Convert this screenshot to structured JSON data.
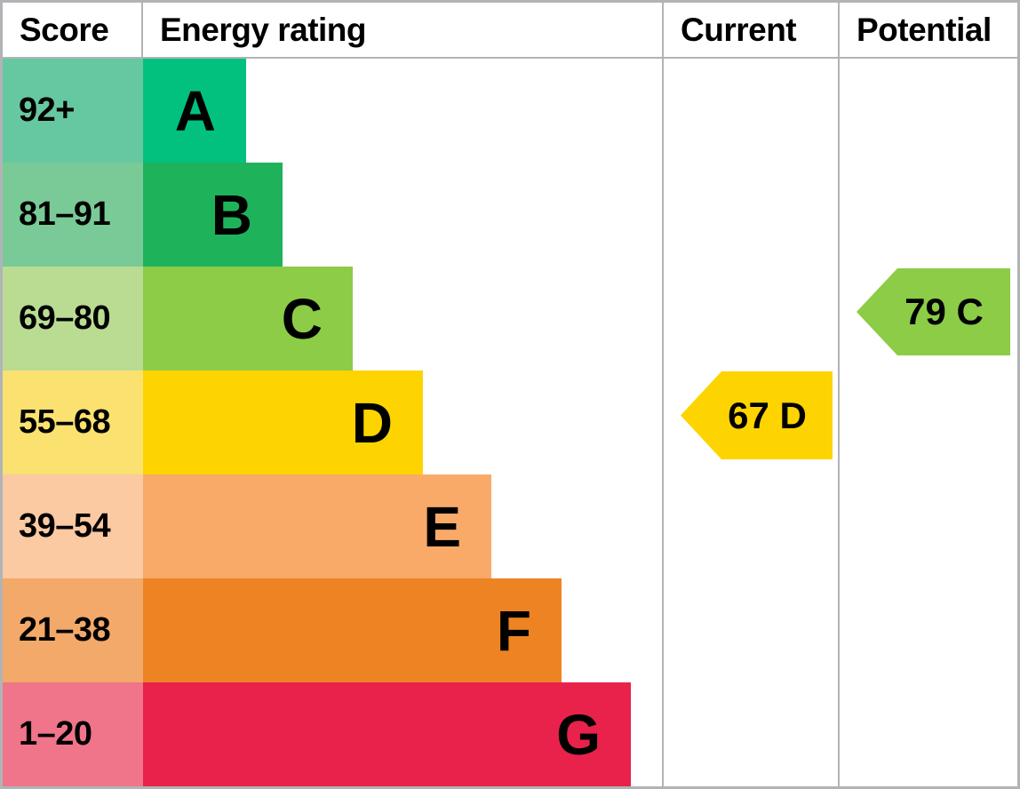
{
  "header": {
    "score": "Score",
    "energy_rating": "Energy rating",
    "current": "Current",
    "potential": "Potential"
  },
  "bands": [
    {
      "letter": "A",
      "score_range": "92+",
      "bar_color": "#02c17e",
      "score_bg": "#66c8a0"
    },
    {
      "letter": "B",
      "score_range": "81–91",
      "bar_color": "#1eb35b",
      "score_bg": "#79ca96"
    },
    {
      "letter": "C",
      "score_range": "69–80",
      "bar_color": "#8ccc47",
      "score_bg": "#b9dc92"
    },
    {
      "letter": "D",
      "score_range": "55–68",
      "bar_color": "#fdd400",
      "score_bg": "#fae170"
    },
    {
      "letter": "E",
      "score_range": "39–54",
      "bar_color": "#f9a968",
      "score_bg": "#fbc9a2"
    },
    {
      "letter": "F",
      "score_range": "21–38",
      "bar_color": "#ee8324",
      "score_bg": "#f3a969"
    },
    {
      "letter": "G",
      "score_range": "1–20",
      "bar_color": "#e8224a",
      "score_bg": "#f0758a"
    }
  ],
  "current": {
    "label": "67 D",
    "score": 67,
    "band": "D",
    "arrow_color": "#fdd400"
  },
  "potential": {
    "label": "79 C",
    "score": 79,
    "band": "C",
    "arrow_color": "#8ccc47"
  },
  "chart_data": {
    "type": "bar",
    "orientation": "horizontal",
    "title": "",
    "columns": [
      "Score",
      "Energy rating",
      "Current",
      "Potential"
    ],
    "categories": [
      "A",
      "B",
      "C",
      "D",
      "E",
      "F",
      "G"
    ],
    "score_ranges": [
      "92+",
      "81–91",
      "69–80",
      "55–68",
      "39–54",
      "21–38",
      "1–20"
    ],
    "band_colors": [
      "#02c17e",
      "#1eb35b",
      "#8ccc47",
      "#fdd400",
      "#f9a968",
      "#ee8324",
      "#e8224a"
    ],
    "score_cell_colors": [
      "#66c8a0",
      "#79ca96",
      "#b9dc92",
      "#fae170",
      "#fbc9a2",
      "#f3a969",
      "#f0758a"
    ],
    "bar_lengths_relative": [
      1,
      1.35,
      2.03,
      2.72,
      3.38,
      4.06,
      4.73
    ],
    "markers": [
      {
        "name": "Current",
        "value": 67,
        "band": "D",
        "color": "#fdd400",
        "shape": "left-pointing-arrow"
      },
      {
        "name": "Potential",
        "value": 79,
        "band": "C",
        "color": "#8ccc47",
        "shape": "left-pointing-arrow"
      }
    ],
    "grid": "off",
    "legend": "off"
  }
}
